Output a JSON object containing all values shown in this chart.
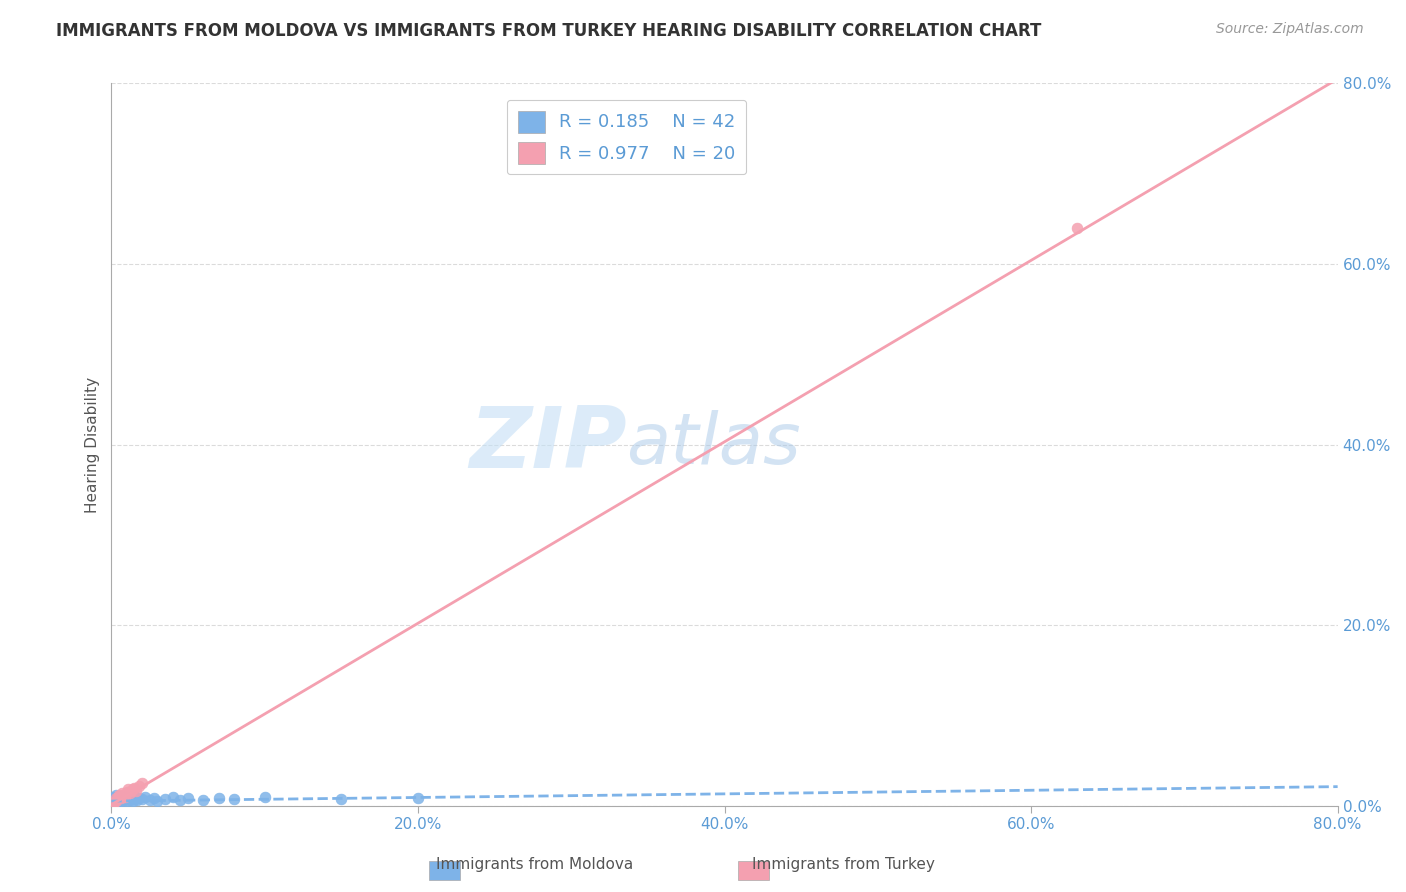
{
  "title": "IMMIGRANTS FROM MOLDOVA VS IMMIGRANTS FROM TURKEY HEARING DISABILITY CORRELATION CHART",
  "source": "Source: ZipAtlas.com",
  "ylabel": "Hearing Disability",
  "xlim": [
    0,
    0.8
  ],
  "ylim": [
    0,
    0.8
  ],
  "xtick_labels": [
    "0.0%",
    "20.0%",
    "40.0%",
    "60.0%",
    "80.0%"
  ],
  "xtick_vals": [
    0.0,
    0.2,
    0.4,
    0.6,
    0.8
  ],
  "ytick_labels": [
    "0.0%",
    "20.0%",
    "40.0%",
    "60.0%",
    "80.0%"
  ],
  "ytick_vals": [
    0.0,
    0.2,
    0.4,
    0.6,
    0.8
  ],
  "moldova_color": "#7eb3e8",
  "turkey_color": "#f4a0b0",
  "moldova_R": 0.185,
  "moldova_N": 42,
  "turkey_R": 0.977,
  "turkey_N": 20,
  "moldova_scatter_x": [
    0.001,
    0.001,
    0.002,
    0.002,
    0.003,
    0.003,
    0.003,
    0.004,
    0.004,
    0.005,
    0.005,
    0.006,
    0.006,
    0.007,
    0.007,
    0.008,
    0.009,
    0.01,
    0.01,
    0.011,
    0.012,
    0.013,
    0.014,
    0.015,
    0.016,
    0.017,
    0.018,
    0.02,
    0.022,
    0.025,
    0.028,
    0.03,
    0.035,
    0.04,
    0.045,
    0.05,
    0.06,
    0.07,
    0.08,
    0.1,
    0.15,
    0.2
  ],
  "moldova_scatter_y": [
    0.005,
    0.008,
    0.006,
    0.01,
    0.004,
    0.007,
    0.012,
    0.006,
    0.009,
    0.005,
    0.008,
    0.007,
    0.01,
    0.005,
    0.008,
    0.006,
    0.009,
    0.005,
    0.007,
    0.008,
    0.006,
    0.01,
    0.005,
    0.007,
    0.009,
    0.006,
    0.008,
    0.007,
    0.009,
    0.006,
    0.008,
    0.005,
    0.007,
    0.009,
    0.006,
    0.008,
    0.006,
    0.008,
    0.007,
    0.009,
    0.007,
    0.008
  ],
  "turkey_scatter_x": [
    0.001,
    0.002,
    0.003,
    0.003,
    0.004,
    0.005,
    0.006,
    0.007,
    0.008,
    0.009,
    0.01,
    0.011,
    0.012,
    0.013,
    0.014,
    0.015,
    0.016,
    0.018,
    0.02,
    0.63
  ],
  "turkey_scatter_y": [
    0.002,
    0.004,
    0.005,
    0.008,
    0.01,
    0.012,
    0.008,
    0.014,
    0.012,
    0.01,
    0.015,
    0.018,
    0.014,
    0.016,
    0.018,
    0.02,
    0.016,
    0.022,
    0.025,
    0.64
  ],
  "watermark_zip": "ZIP",
  "watermark_atlas": "atlas",
  "background_color": "#ffffff",
  "grid_color": "#cccccc",
  "moldova_line_slope": 0.02,
  "moldova_line_intercept": 0.005,
  "turkey_line_slope": 1.005,
  "turkey_line_intercept": 0.001,
  "title_fontsize": 12,
  "tick_fontsize": 11,
  "ylabel_fontsize": 11,
  "source_fontsize": 10,
  "legend_fontsize": 13
}
